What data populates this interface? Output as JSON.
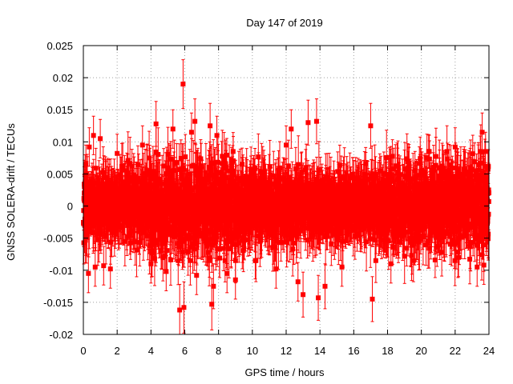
{
  "chart_data": {
    "type": "scatter",
    "title": "Day 147 of 2019",
    "xlabel": "GPS time / hours",
    "ylabel": "GNSS SOLERA-drift / TECUs",
    "xlim": [
      0,
      24
    ],
    "ylim": [
      -0.02,
      0.025
    ],
    "x_ticks": [
      0,
      2,
      4,
      6,
      8,
      10,
      12,
      14,
      16,
      18,
      20,
      22,
      24
    ],
    "x_tick_labels": [
      "0",
      "2",
      "4",
      "6",
      "8",
      "10",
      "12",
      "14",
      "16",
      "18",
      "20",
      "22",
      "24"
    ],
    "y_ticks": [
      -0.02,
      -0.015,
      -0.01,
      -0.005,
      0,
      0.005,
      0.01,
      0.015,
      0.02,
      0.025
    ],
    "y_tick_labels": [
      "-0.02",
      "-0.015",
      "-0.01",
      "-0.005",
      "0",
      "0.005",
      "0.01",
      "0.015",
      "0.02",
      "0.025"
    ],
    "grid": true,
    "marker": "square",
    "error_bars": true,
    "series_color": "#ff0000",
    "series": [
      {
        "name": "SOLERA-drift",
        "generated_density": {
          "n_points": 2880,
          "x_range": [
            0,
            24
          ],
          "typical_value_spread": 0.0045,
          "typical_error_bar": 0.0035,
          "seed": 147
        },
        "points": [
          {
            "x": 0.05,
            "y": 0.002,
            "err": 0.003
          },
          {
            "x": 0.15,
            "y": 0.0065,
            "err": 0.003
          },
          {
            "x": 0.3,
            "y": -0.0105,
            "err": 0.003
          },
          {
            "x": 0.35,
            "y": 0.0092,
            "err": 0.003
          },
          {
            "x": 0.6,
            "y": 0.011,
            "err": 0.003
          },
          {
            "x": 0.7,
            "y": -0.0095,
            "err": 0.003
          },
          {
            "x": 1.0,
            "y": 0.0105,
            "err": 0.003
          },
          {
            "x": 1.2,
            "y": -0.0093,
            "err": 0.003
          },
          {
            "x": 1.6,
            "y": -0.0098,
            "err": 0.003
          },
          {
            "x": 2.0,
            "y": 0.0082,
            "err": 0.003
          },
          {
            "x": 3.5,
            "y": 0.0095,
            "err": 0.003
          },
          {
            "x": 4.0,
            "y": -0.009,
            "err": 0.003
          },
          {
            "x": 4.3,
            "y": 0.0128,
            "err": 0.0035
          },
          {
            "x": 4.9,
            "y": -0.0102,
            "err": 0.003
          },
          {
            "x": 5.3,
            "y": 0.012,
            "err": 0.003
          },
          {
            "x": 5.7,
            "y": -0.0162,
            "err": 0.004
          },
          {
            "x": 5.9,
            "y": 0.019,
            "err": 0.0038
          },
          {
            "x": 5.95,
            "y": -0.0158,
            "err": 0.004
          },
          {
            "x": 6.4,
            "y": 0.0115,
            "err": 0.003
          },
          {
            "x": 6.6,
            "y": 0.0132,
            "err": 0.0035
          },
          {
            "x": 6.7,
            "y": -0.0108,
            "err": 0.003
          },
          {
            "x": 7.5,
            "y": 0.0125,
            "err": 0.0035
          },
          {
            "x": 7.6,
            "y": -0.0153,
            "err": 0.004
          },
          {
            "x": 7.7,
            "y": -0.0125,
            "err": 0.0035
          },
          {
            "x": 7.9,
            "y": 0.011,
            "err": 0.003
          },
          {
            "x": 8.5,
            "y": -0.0105,
            "err": 0.003
          },
          {
            "x": 9.0,
            "y": -0.0115,
            "err": 0.003
          },
          {
            "x": 11.4,
            "y": -0.0098,
            "err": 0.003
          },
          {
            "x": 12.0,
            "y": 0.0095,
            "err": 0.003
          },
          {
            "x": 12.3,
            "y": 0.012,
            "err": 0.003
          },
          {
            "x": 12.7,
            "y": -0.0118,
            "err": 0.003
          },
          {
            "x": 13.0,
            "y": -0.0138,
            "err": 0.0035
          },
          {
            "x": 13.3,
            "y": 0.013,
            "err": 0.0035
          },
          {
            "x": 13.8,
            "y": 0.0132,
            "err": 0.0035
          },
          {
            "x": 13.9,
            "y": -0.0143,
            "err": 0.0035
          },
          {
            "x": 14.3,
            "y": -0.0125,
            "err": 0.0035
          },
          {
            "x": 15.3,
            "y": -0.0095,
            "err": 0.003
          },
          {
            "x": 17.0,
            "y": 0.0125,
            "err": 0.0035
          },
          {
            "x": 17.1,
            "y": -0.0145,
            "err": 0.0035
          },
          {
            "x": 18.2,
            "y": -0.009,
            "err": 0.003
          },
          {
            "x": 22.0,
            "y": 0.0092,
            "err": 0.003
          },
          {
            "x": 22.2,
            "y": -0.008,
            "err": 0.003
          },
          {
            "x": 23.3,
            "y": -0.0095,
            "err": 0.003
          },
          {
            "x": 23.6,
            "y": 0.0115,
            "err": 0.003
          },
          {
            "x": 23.7,
            "y": -0.0092,
            "err": 0.003
          },
          {
            "x": 23.8,
            "y": 0.0085,
            "err": 0.003
          }
        ]
      }
    ]
  }
}
